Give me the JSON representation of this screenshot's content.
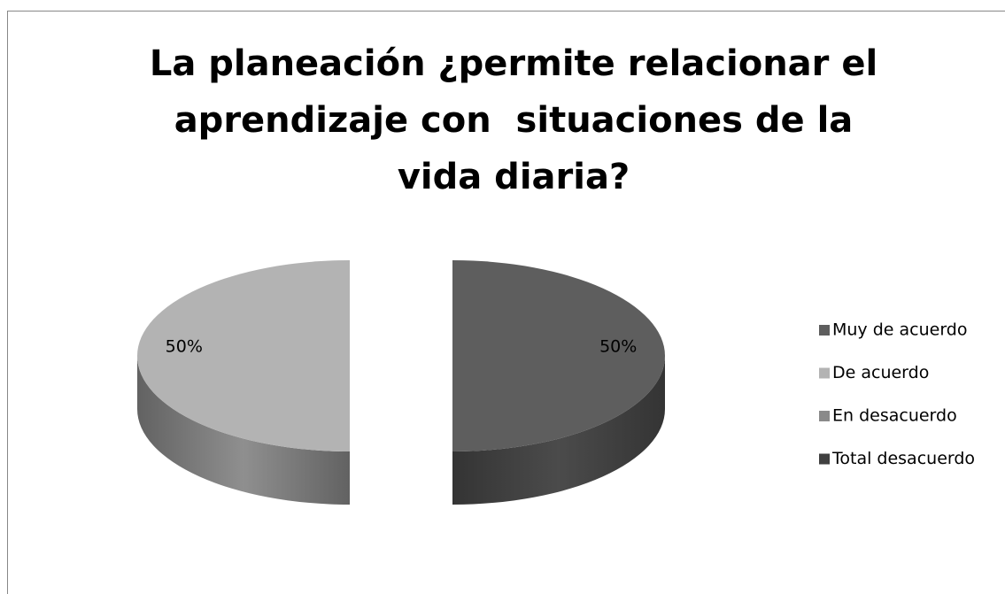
{
  "chart_data": {
    "type": "pie",
    "title": "La planeación ¿permite relacionar el aprendizaje con  situaciones de la vida diaria?",
    "categories": [
      "Muy de acuerdo",
      "De acuerdo",
      "En desacuerdo",
      "Total desacuerdo"
    ],
    "values": [
      50,
      50,
      0,
      0
    ],
    "value_labels": [
      "50%",
      "50%",
      null,
      null
    ],
    "colors": [
      "#5e5e5e",
      "#b3b3b3",
      "#8a8a8a",
      "#404040"
    ],
    "legend": "right"
  }
}
